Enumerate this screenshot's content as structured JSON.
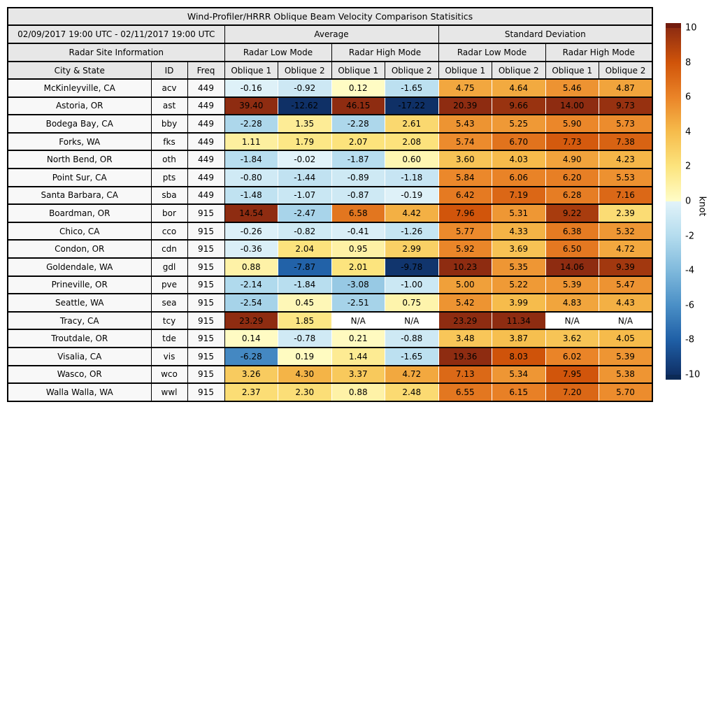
{
  "header": {
    "date_range": "02/09/2017 19:00 UTC - 02/11/2017 19:00 UTC",
    "average_label": "Average",
    "stddev_label": "Standard Deviation",
    "site_info_label": "Radar Site Information",
    "mode_labels": [
      "Radar Low Mode",
      "Radar High Mode",
      "Radar Low Mode",
      "Radar High Mode"
    ],
    "col_headers": [
      "City & State",
      "ID",
      "Freq",
      "Oblique 1",
      "Oblique 2",
      "Oblique 1",
      "Oblique 2",
      "Oblique 1",
      "Oblique 2",
      "Oblique 1",
      "Oblique 2"
    ]
  },
  "colormap": {
    "na_bg": "#ffffff",
    "negative_stops": [
      [
        -10,
        "#0f3066"
      ],
      [
        -8,
        "#1f5fa6"
      ],
      [
        -6,
        "#4a8fc6"
      ],
      [
        -4,
        "#7fb9dc"
      ],
      [
        -2,
        "#b4dcee"
      ],
      [
        0,
        "#e2f3f9"
      ]
    ],
    "positive_stops": [
      [
        0,
        "#fffdc8"
      ],
      [
        2,
        "#fce47e"
      ],
      [
        4,
        "#f6bc4c"
      ],
      [
        6,
        "#ea8428"
      ],
      [
        8,
        "#d0540a"
      ],
      [
        10,
        "#8e2c11"
      ]
    ],
    "over_color": "#721b0d",
    "under_color": "#0c2a56"
  },
  "chart_data": {
    "type": "heatmap",
    "title": "Wind-Profiler/HRRR Oblique Beam Velocity Comparison Statisitics",
    "value_unit": "knot",
    "value_range": [
      -10,
      10
    ],
    "colorbar": {
      "label": "knot",
      "ticks": [
        10,
        8,
        6,
        4,
        2,
        0,
        -2,
        -4,
        -6,
        -8,
        -10
      ]
    },
    "columns": [
      "avg_low_oblique1",
      "avg_low_oblique2",
      "avg_high_oblique1",
      "avg_high_oblique2",
      "std_low_oblique1",
      "std_low_oblique2",
      "std_high_oblique1",
      "std_high_oblique2"
    ],
    "rows": [
      {
        "city": "McKinleyville, CA",
        "id": "acv",
        "freq": "449",
        "values": [
          "-0.16",
          "-0.92",
          "0.12",
          "-1.65",
          "4.75",
          "4.64",
          "5.46",
          "4.87"
        ]
      },
      {
        "city": "Astoria, OR",
        "id": "ast",
        "freq": "449",
        "values": [
          "39.40",
          "-12.62",
          "46.15",
          "-17.22",
          "20.39",
          "9.66",
          "14.00",
          "9.73"
        ]
      },
      {
        "city": "Bodega Bay, CA",
        "id": "bby",
        "freq": "449",
        "values": [
          "-2.28",
          "1.35",
          "-2.28",
          "2.61",
          "5.43",
          "5.25",
          "5.90",
          "5.73"
        ]
      },
      {
        "city": "Forks, WA",
        "id": "fks",
        "freq": "449",
        "values": [
          "1.11",
          "1.79",
          "2.07",
          "2.08",
          "5.74",
          "6.70",
          "7.73",
          "7.38"
        ]
      },
      {
        "city": "North Bend, OR",
        "id": "oth",
        "freq": "449",
        "values": [
          "-1.84",
          "-0.02",
          "-1.87",
          "0.60",
          "3.60",
          "4.03",
          "4.90",
          "4.23"
        ]
      },
      {
        "city": "Point Sur, CA",
        "id": "pts",
        "freq": "449",
        "values": [
          "-0.80",
          "-1.44",
          "-0.89",
          "-1.18",
          "5.84",
          "6.06",
          "6.20",
          "5.53"
        ]
      },
      {
        "city": "Santa Barbara, CA",
        "id": "sba",
        "freq": "449",
        "values": [
          "-1.48",
          "-1.07",
          "-0.87",
          "-0.19",
          "6.42",
          "7.19",
          "6.28",
          "7.16"
        ]
      },
      {
        "city": "Boardman, OR",
        "id": "bor",
        "freq": "915",
        "values": [
          "14.54",
          "-2.47",
          "6.58",
          "4.42",
          "7.96",
          "5.31",
          "9.22",
          "2.39"
        ]
      },
      {
        "city": "Chico, CA",
        "id": "cco",
        "freq": "915",
        "values": [
          "-0.26",
          "-0.82",
          "-0.41",
          "-1.26",
          "5.77",
          "4.33",
          "6.38",
          "5.32"
        ]
      },
      {
        "city": "Condon, OR",
        "id": "cdn",
        "freq": "915",
        "values": [
          "-0.36",
          "2.04",
          "0.95",
          "2.99",
          "5.92",
          "3.69",
          "6.50",
          "4.72"
        ]
      },
      {
        "city": "Goldendale, WA",
        "id": "gdl",
        "freq": "915",
        "values": [
          "0.88",
          "-7.87",
          "2.01",
          "-9.78",
          "10.23",
          "5.35",
          "14.06",
          "9.39"
        ]
      },
      {
        "city": "Prineville, OR",
        "id": "pve",
        "freq": "915",
        "values": [
          "-2.14",
          "-1.84",
          "-3.08",
          "-1.00",
          "5.00",
          "5.22",
          "5.39",
          "5.47"
        ]
      },
      {
        "city": "Seattle, WA",
        "id": "sea",
        "freq": "915",
        "values": [
          "-2.54",
          "0.45",
          "-2.51",
          "0.75",
          "5.42",
          "3.99",
          "4.83",
          "4.43"
        ]
      },
      {
        "city": "Tracy, CA",
        "id": "tcy",
        "freq": "915",
        "values": [
          "23.29",
          "1.85",
          "N/A",
          "N/A",
          "23.29",
          "11.34",
          "N/A",
          "N/A"
        ]
      },
      {
        "city": "Troutdale, OR",
        "id": "tde",
        "freq": "915",
        "values": [
          "0.14",
          "-0.78",
          "0.21",
          "-0.88",
          "3.48",
          "3.87",
          "3.62",
          "4.05"
        ]
      },
      {
        "city": "Visalia, CA",
        "id": "vis",
        "freq": "915",
        "values": [
          "-6.28",
          "0.19",
          "1.44",
          "-1.65",
          "19.36",
          "8.03",
          "6.02",
          "5.39"
        ]
      },
      {
        "city": "Wasco, OR",
        "id": "wco",
        "freq": "915",
        "values": [
          "3.26",
          "4.30",
          "3.37",
          "4.72",
          "7.13",
          "5.34",
          "7.95",
          "5.38"
        ]
      },
      {
        "city": "Walla Walla, WA",
        "id": "wwl",
        "freq": "915",
        "values": [
          "2.37",
          "2.30",
          "0.88",
          "2.48",
          "6.55",
          "6.15",
          "7.20",
          "5.70"
        ]
      }
    ]
  }
}
